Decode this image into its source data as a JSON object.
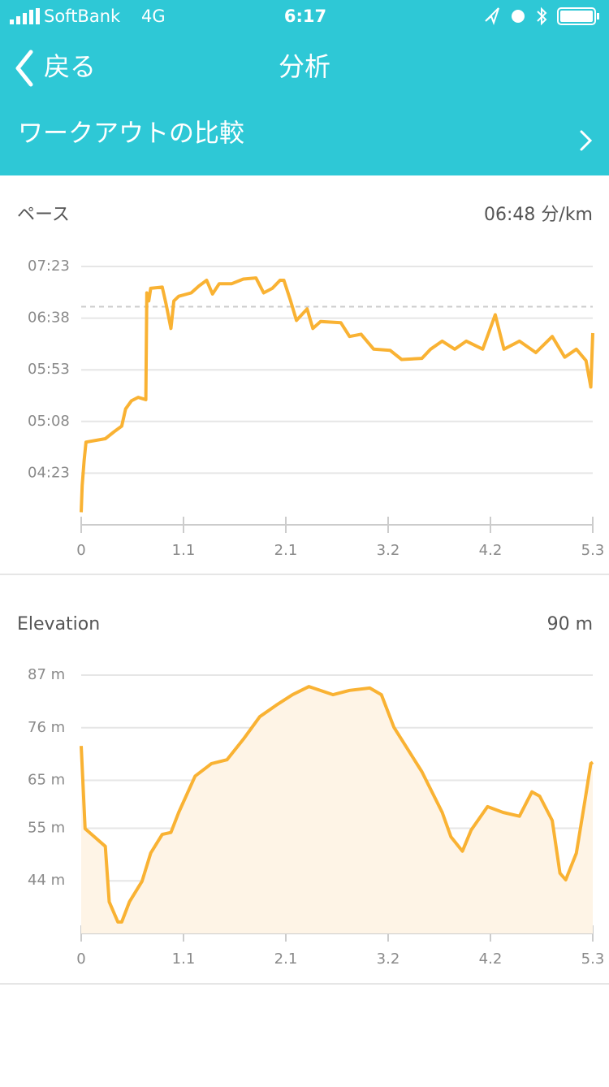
{
  "status_bar": {
    "carrier": "SoftBank",
    "network": "4G",
    "time": "6:17"
  },
  "nav": {
    "back": "戻る",
    "title": "分析"
  },
  "compare_row": {
    "label": "ワークアウトの比較"
  },
  "chart_data": [
    {
      "type": "line",
      "title": "ペース",
      "average": {
        "value": 408,
        "label": "06:48 分/km"
      },
      "color": "#f9b233",
      "grid": true,
      "x": [
        0,
        0.01,
        0.03,
        0.05,
        0.25,
        0.34,
        0.42,
        0.46,
        0.52,
        0.59,
        0.67,
        0.68,
        0.7,
        0.72,
        0.84,
        0.88,
        0.93,
        0.96,
        1.01,
        1.14,
        1.22,
        1.3,
        1.36,
        1.43,
        1.56,
        1.68,
        1.81,
        1.89,
        1.98,
        2.06,
        2.1,
        2.17,
        2.23,
        2.34,
        2.4,
        2.48,
        2.69,
        2.78,
        2.9,
        3.03,
        3.2,
        3.32,
        3.53,
        3.62,
        3.74,
        3.87,
        3.99,
        4.16,
        4.29,
        4.38,
        4.54,
        4.71,
        4.88,
        5.01,
        5.13,
        5.23,
        5.28,
        5.3
      ],
      "values": [
        229,
        252,
        274,
        290,
        293,
        299,
        304,
        319,
        326,
        329,
        327,
        420,
        413,
        424,
        425,
        410,
        389,
        413,
        417,
        420,
        426,
        431,
        419,
        428,
        428,
        432,
        433,
        420,
        424,
        431,
        431,
        413,
        396,
        406,
        389,
        395,
        394,
        382,
        384,
        371,
        370,
        362,
        363,
        371,
        378,
        371,
        378,
        371,
        401,
        371,
        378,
        368,
        382,
        364,
        371,
        361,
        338,
        385
      ],
      "xlim": [
        0,
        5.3
      ],
      "xticks": [
        0,
        {
          "value": 1.06,
          "label": "1.1"
        },
        {
          "value": 2.12,
          "label": "2.1"
        },
        {
          "value": 3.18,
          "label": "3.2"
        },
        {
          "value": 4.24,
          "label": "4.2"
        },
        5.3
      ],
      "ylim": [
        218,
        443
      ],
      "yticks": [
        {
          "value": 443,
          "label": "07:23"
        },
        {
          "value": 398,
          "label": "06:38"
        },
        {
          "value": 353,
          "label": "05:53"
        },
        {
          "value": 308,
          "label": "05:08"
        },
        {
          "value": 263,
          "label": "04:23"
        }
      ]
    },
    {
      "type": "area",
      "title": "Elevation",
      "summary": "90 m",
      "color": "#f9b233",
      "fill": "#fef4e6",
      "grid": true,
      "x": [
        0,
        0.04,
        0.25,
        0.29,
        0.38,
        0.42,
        0.5,
        0.63,
        0.72,
        0.84,
        0.93,
        1.01,
        1.18,
        1.35,
        1.51,
        1.68,
        1.85,
        2.02,
        2.19,
        2.36,
        2.61,
        2.78,
        2.99,
        3.11,
        3.24,
        3.53,
        3.74,
        3.83,
        3.95,
        4.04,
        4.21,
        4.37,
        4.54,
        4.67,
        4.75,
        4.88,
        4.96,
        5.02,
        5.13,
        5.22,
        5.28,
        5.3
      ],
      "values": [
        72.2,
        54.9,
        51.2,
        39.6,
        35.4,
        35.4,
        39.6,
        43.9,
        49.8,
        53.7,
        54.1,
        58.3,
        65.9,
        68.5,
        69.3,
        73.6,
        78.3,
        80.7,
        82.9,
        84.6,
        82.9,
        83.8,
        84.3,
        82.9,
        76.1,
        66.8,
        58.3,
        53.2,
        50.2,
        54.6,
        59.5,
        58.3,
        57.5,
        62.6,
        61.7,
        56.6,
        45.6,
        44.2,
        49.8,
        60.9,
        68.5,
        68.8
      ],
      "xlim": [
        0,
        5.3
      ],
      "xticks": [
        0,
        {
          "value": 1.06,
          "label": "1.1"
        },
        {
          "value": 2.12,
          "label": "2.1"
        },
        {
          "value": 3.18,
          "label": "3.2"
        },
        {
          "value": 4.24,
          "label": "4.2"
        },
        5.3
      ],
      "ylim": [
        33,
        87
      ],
      "yticks": [
        {
          "value": 87,
          "label": "87 m"
        },
        {
          "value": 76,
          "label": "76 m"
        },
        {
          "value": 65,
          "label": "65 m"
        },
        {
          "value": 55,
          "label": "55 m"
        },
        {
          "value": 44,
          "label": "44 m"
        }
      ]
    }
  ]
}
